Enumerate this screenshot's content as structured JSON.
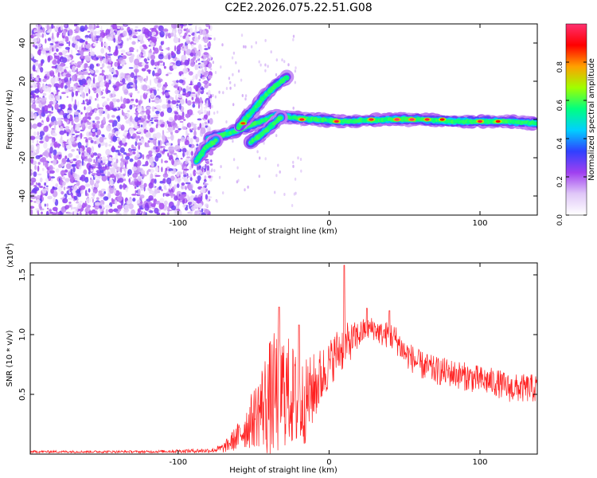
{
  "title": "C2E2.2026.075.22.51.G08",
  "chart_data": [
    {
      "type": "heatmap",
      "name": "spectrogram",
      "xlabel": "Height of straight line (km)",
      "ylabel": "Frequency (Hz)",
      "xlim": [
        -198,
        138
      ],
      "ylim": [
        -50,
        50
      ],
      "xticks": [
        -100,
        0,
        100
      ],
      "xtick_labels": [
        "-100",
        "0",
        "100"
      ],
      "yticks": [
        -40,
        -20,
        0,
        20,
        40
      ],
      "ytick_labels": [
        "-40",
        "-20",
        "0",
        "20",
        "40"
      ],
      "colorbar": {
        "label": "Normalized spectral amplitude",
        "range": [
          0,
          1
        ],
        "ticks": [
          0,
          0.2,
          0.4,
          0.6,
          0.8
        ],
        "tick_labels": [
          "0.0",
          "0.2",
          "0.4",
          "0.6",
          "0.8"
        ],
        "colors": [
          "#ffffff",
          "#e0c8f8",
          "#a040f0",
          "#3040ff",
          "#00d0ff",
          "#00ff80",
          "#a0ff00",
          "#ffa000",
          "#ff0000",
          "#ff3070"
        ]
      },
      "noise_region_x": [
        -198,
        -78
      ],
      "noise_amplitude_typical": 0.15,
      "ridges": [
        {
          "name": "main",
          "points": [
            [
              -80,
              -10
            ],
            [
              -65,
              -7
            ],
            [
              -55,
              -4
            ],
            [
              -45,
              -1
            ],
            [
              -35,
              2
            ],
            [
              -25,
              1
            ],
            [
              -10,
              0
            ],
            [
              10,
              -1
            ],
            [
              40,
              0
            ],
            [
              60,
              0
            ],
            [
              80,
              -1
            ],
            [
              100,
              -1
            ],
            [
              120,
              -1
            ],
            [
              138,
              -2
            ]
          ]
        },
        {
          "name": "upper-branch",
          "points": [
            [
              -60,
              -4
            ],
            [
              -50,
              5
            ],
            [
              -43,
              12
            ],
            [
              -35,
              18
            ],
            [
              -28,
              22
            ]
          ]
        },
        {
          "name": "lower-branch",
          "points": [
            [
              -88,
              -22
            ],
            [
              -82,
              -15
            ],
            [
              -75,
              -11
            ]
          ]
        },
        {
          "name": "descending-branch",
          "points": [
            [
              -52,
              -12
            ],
            [
              -45,
              -8
            ],
            [
              -38,
              -3
            ],
            [
              -32,
              1
            ]
          ]
        }
      ],
      "peaks": [
        {
          "x": -57,
          "y": -2,
          "a": 0.85
        },
        {
          "x": -18,
          "y": 0,
          "a": 0.95
        },
        {
          "x": 5,
          "y": -1,
          "a": 0.95
        },
        {
          "x": 28,
          "y": 0,
          "a": 0.95
        },
        {
          "x": 45,
          "y": 0,
          "a": 1.0
        },
        {
          "x": 55,
          "y": 0,
          "a": 1.0
        },
        {
          "x": 65,
          "y": 0,
          "a": 0.95
        },
        {
          "x": 75,
          "y": 0,
          "a": 0.9
        },
        {
          "x": 100,
          "y": -1,
          "a": 0.95
        },
        {
          "x": 112,
          "y": -1,
          "a": 0.9
        }
      ]
    },
    {
      "type": "line",
      "name": "snr",
      "xlabel": "Height of straight line (km)",
      "ylabel": "SNR (10 * v/v)",
      "y_multiplier_label": "(x10",
      "y_multiplier_exp": "4",
      "xlim": [
        -198,
        138
      ],
      "ylim": [
        0,
        1.6
      ],
      "xticks": [
        -100,
        0,
        100
      ],
      "xtick_labels": [
        "-100",
        "0",
        "100"
      ],
      "yticks": [
        0.5,
        1.0,
        1.5
      ],
      "ytick_labels": [
        "0.5",
        "1.0",
        "1.5"
      ],
      "color": "#ff2020",
      "envelope": {
        "x": [
          -198,
          -120,
          -78,
          -70,
          -60,
          -50,
          -45,
          -40,
          -35,
          -30,
          -25,
          -20,
          -15,
          -10,
          -5,
          0,
          5,
          10,
          15,
          20,
          25,
          30,
          35,
          40,
          45,
          50,
          60,
          70,
          80,
          90,
          100,
          110,
          120,
          130,
          138
        ],
        "mean": [
          0.02,
          0.02,
          0.03,
          0.05,
          0.15,
          0.3,
          0.4,
          0.45,
          0.5,
          0.55,
          0.5,
          0.4,
          0.45,
          0.55,
          0.65,
          0.75,
          0.85,
          0.9,
          0.95,
          1.0,
          1.05,
          1.05,
          1.0,
          1.0,
          0.95,
          0.85,
          0.75,
          0.7,
          0.68,
          0.65,
          0.62,
          0.6,
          0.55,
          0.55,
          0.55
        ],
        "spread": [
          0.01,
          0.01,
          0.02,
          0.04,
          0.12,
          0.25,
          0.35,
          0.5,
          0.55,
          0.5,
          0.45,
          0.4,
          0.35,
          0.3,
          0.25,
          0.2,
          0.2,
          0.2,
          0.15,
          0.12,
          0.1,
          0.1,
          0.1,
          0.12,
          0.12,
          0.12,
          0.12,
          0.12,
          0.12,
          0.12,
          0.12,
          0.12,
          0.12,
          0.12,
          0.12
        ]
      },
      "spikes": [
        [
          -33,
          1.23
        ],
        [
          -20,
          1.08
        ],
        [
          10,
          1.58
        ],
        [
          25,
          1.22
        ],
        [
          40,
          1.2
        ]
      ]
    }
  ]
}
